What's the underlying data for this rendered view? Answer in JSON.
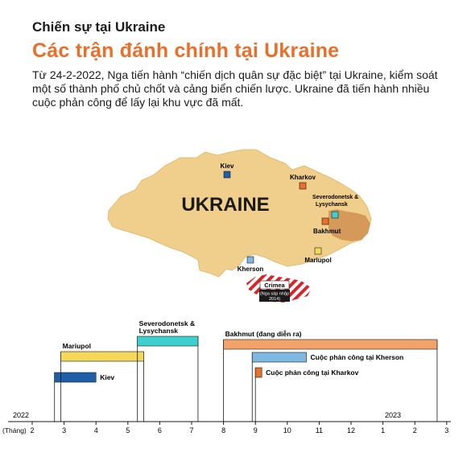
{
  "header": {
    "kicker": "Chiến sự tại Ukraine",
    "title": "Các trận đánh chính tại Ukraine",
    "description": "Từ 24-2-2022, Nga tiến hành “chiến dịch quân sự đặc biệt” tại Ukraine, kiểm soát một số thành phố chủ chốt và cảng biển chiến lược. Ukraine đã tiến hành nhiều cuộc phản công để lấy lại khu vực đã mất."
  },
  "map": {
    "country_label": "UKRAINE",
    "crimea_label": "Crimea",
    "crimea_note_line1": "(Nga sáp nhập",
    "crimea_note_line2": "2014)",
    "cities": [
      {
        "name": "Kiev",
        "color": "#1f5fa8"
      },
      {
        "name": "Kharkov",
        "color": "#e8702a"
      },
      {
        "name": "Severodonetsk &",
        "name2": "Lysychansk",
        "color": "#3ecfcf"
      },
      {
        "name": "Bakhmut",
        "color": "#e8702a"
      },
      {
        "name": "Mariupol",
        "color": "#f5d75a"
      },
      {
        "name": "Kherson",
        "color": "#7fb8e0"
      }
    ],
    "colors": {
      "land": "#f0cf8c",
      "occupied": "#d59a5a",
      "crimea_stripe": "#d7262b"
    }
  },
  "timeline": {
    "year_start": "2022",
    "year_end": "2023",
    "axis_label": "(Tháng)",
    "ticks": [
      "2",
      "3",
      "4",
      "5",
      "6",
      "7",
      "8",
      "9",
      "10",
      "11",
      "12",
      "1",
      "2",
      "3"
    ],
    "events": [
      {
        "label": "Kiev",
        "start": 2.7,
        "end": 4.0,
        "color": "#1f5fa8",
        "label_pos": "right"
      },
      {
        "label": "Mariupol",
        "start": 2.9,
        "end": 5.5,
        "color": "#f5d75a",
        "label_pos": "above"
      },
      {
        "label": "Severodonetsk &",
        "label2": "Lysychansk",
        "start": 5.3,
        "end": 7.2,
        "color": "#3ecfcf",
        "label_pos": "above"
      },
      {
        "label": "Bakhmut (đang diễn ra)",
        "start": 8.0,
        "end": 14.7,
        "color": "#f3a36a",
        "label_pos": "above"
      },
      {
        "label": "Cuộc phản công tại Kherson",
        "start": 8.9,
        "end": 10.6,
        "color": "#7fb8e0",
        "label_pos": "right"
      },
      {
        "label": "Cuộc phản công tại Kharkov",
        "start": 9.0,
        "end": 9.2,
        "color": "#e8702a",
        "label_pos": "right"
      }
    ]
  }
}
